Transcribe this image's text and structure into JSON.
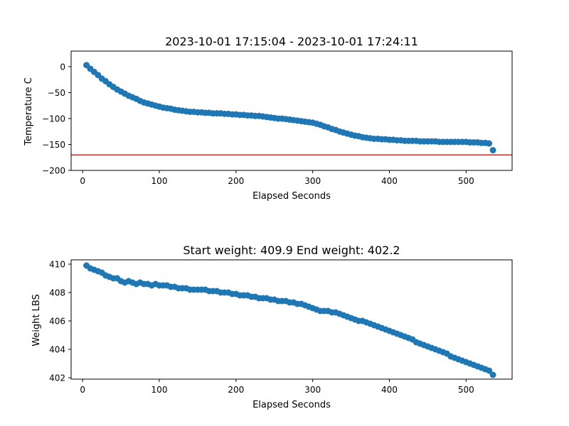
{
  "chart_data": [
    {
      "type": "scatter",
      "title": "2023-10-01 17:15:04 - 2023-10-01 17:24:11",
      "xlabel": "Elapsed Seconds",
      "ylabel": "Temperature C",
      "xlim": [
        -15,
        560
      ],
      "ylim": [
        -200,
        30
      ],
      "xticks": [
        0,
        100,
        200,
        300,
        400,
        500
      ],
      "xtick_labels": [
        "0",
        "100",
        "200",
        "300",
        "400",
        "500"
      ],
      "yticks": [
        0,
        -50,
        -100,
        -150,
        -200
      ],
      "ytick_labels": [
        "0",
        "−50",
        "−100",
        "−150",
        "−200"
      ],
      "grid": false,
      "series": [
        {
          "color": "#1f77b4",
          "x": [
            5,
            10,
            15,
            20,
            25,
            30,
            35,
            40,
            45,
            50,
            55,
            60,
            65,
            70,
            75,
            80,
            85,
            90,
            95,
            100,
            105,
            110,
            115,
            120,
            125,
            130,
            135,
            140,
            145,
            150,
            155,
            160,
            165,
            170,
            175,
            180,
            185,
            190,
            195,
            200,
            205,
            210,
            215,
            220,
            225,
            230,
            235,
            240,
            245,
            250,
            255,
            260,
            265,
            270,
            275,
            280,
            285,
            290,
            295,
            300,
            305,
            310,
            315,
            320,
            325,
            330,
            335,
            340,
            345,
            350,
            355,
            360,
            365,
            370,
            375,
            380,
            385,
            390,
            395,
            400,
            405,
            410,
            415,
            420,
            425,
            430,
            435,
            440,
            445,
            450,
            455,
            460,
            465,
            470,
            475,
            480,
            485,
            490,
            495,
            500,
            505,
            510,
            515,
            520,
            525,
            530,
            535
          ],
          "y": [
            3,
            -4,
            -10,
            -16,
            -23,
            -28,
            -34,
            -39,
            -44,
            -48,
            -52,
            -56,
            -59,
            -62,
            -66,
            -69,
            -71,
            -73,
            -75,
            -77,
            -79,
            -80,
            -81,
            -83,
            -84,
            -85,
            -86,
            -87,
            -87,
            -88,
            -88,
            -89,
            -89,
            -90,
            -90,
            -90,
            -91,
            -91,
            -92,
            -92,
            -93,
            -93,
            -94,
            -94,
            -95,
            -95,
            -96,
            -97,
            -98,
            -99,
            -100,
            -100,
            -101,
            -102,
            -103,
            -104,
            -105,
            -106,
            -107,
            -108,
            -110,
            -112,
            -115,
            -117,
            -120,
            -122,
            -125,
            -127,
            -129,
            -131,
            -133,
            -134,
            -136,
            -137,
            -138,
            -139,
            -139,
            -140,
            -140,
            -141,
            -141,
            -142,
            -142,
            -143,
            -143,
            -143,
            -143,
            -144,
            -144,
            -144,
            -144,
            -144,
            -145,
            -145,
            -145,
            -145,
            -145,
            -145,
            -145,
            -145,
            -146,
            -146,
            -146,
            -147,
            -147,
            -148,
            -161
          ]
        }
      ],
      "reference_line": {
        "y": -170,
        "color": "#d62728"
      }
    },
    {
      "type": "scatter",
      "title": "Start weight: 409.9 End weight: 402.2",
      "xlabel": "Elapsed Seconds",
      "ylabel": "Weight LBS",
      "xlim": [
        -15,
        560
      ],
      "ylim": [
        401.9,
        410.3
      ],
      "xticks": [
        0,
        100,
        200,
        300,
        400,
        500
      ],
      "xtick_labels": [
        "0",
        "100",
        "200",
        "300",
        "400",
        "500"
      ],
      "yticks": [
        402,
        404,
        406,
        408,
        410
      ],
      "ytick_labels": [
        "402",
        "404",
        "406",
        "408",
        "410"
      ],
      "grid": false,
      "series": [
        {
          "color": "#1f77b4",
          "x": [
            5,
            10,
            15,
            20,
            25,
            30,
            35,
            40,
            45,
            50,
            55,
            60,
            65,
            70,
            75,
            80,
            85,
            90,
            95,
            100,
            105,
            110,
            115,
            120,
            125,
            130,
            135,
            140,
            145,
            150,
            155,
            160,
            165,
            170,
            175,
            180,
            185,
            190,
            195,
            200,
            205,
            210,
            215,
            220,
            225,
            230,
            235,
            240,
            245,
            250,
            255,
            260,
            265,
            270,
            275,
            280,
            285,
            290,
            295,
            300,
            305,
            310,
            315,
            320,
            325,
            330,
            335,
            340,
            345,
            350,
            355,
            360,
            365,
            370,
            375,
            380,
            385,
            390,
            395,
            400,
            405,
            410,
            415,
            420,
            425,
            430,
            435,
            440,
            445,
            450,
            455,
            460,
            465,
            470,
            475,
            480,
            485,
            490,
            495,
            500,
            505,
            510,
            515,
            520,
            525,
            530,
            535
          ],
          "y": [
            409.9,
            409.7,
            409.6,
            409.5,
            409.4,
            409.2,
            409.1,
            409.0,
            409.0,
            408.8,
            408.7,
            408.8,
            408.7,
            408.6,
            408.7,
            408.6,
            408.6,
            408.5,
            408.6,
            408.5,
            408.5,
            408.5,
            408.4,
            408.4,
            408.3,
            408.3,
            408.3,
            408.2,
            408.2,
            408.2,
            408.2,
            408.2,
            408.1,
            408.1,
            408.1,
            408.0,
            408.0,
            408.0,
            407.9,
            407.9,
            407.8,
            407.8,
            407.8,
            407.7,
            407.7,
            407.6,
            407.6,
            407.6,
            407.5,
            407.5,
            407.4,
            407.4,
            407.4,
            407.3,
            407.3,
            407.2,
            407.2,
            407.1,
            407.0,
            406.9,
            406.8,
            406.7,
            406.7,
            406.7,
            406.6,
            406.6,
            406.5,
            406.4,
            406.3,
            406.2,
            406.1,
            406.0,
            406.0,
            405.9,
            405.8,
            405.7,
            405.6,
            405.5,
            405.4,
            405.3,
            405.2,
            405.1,
            405.0,
            404.9,
            404.8,
            404.7,
            404.5,
            404.4,
            404.3,
            404.2,
            404.1,
            404.0,
            403.9,
            403.8,
            403.7,
            403.5,
            403.4,
            403.3,
            403.2,
            403.1,
            403.0,
            402.9,
            402.8,
            402.7,
            402.6,
            402.5,
            402.2
          ]
        }
      ]
    }
  ]
}
